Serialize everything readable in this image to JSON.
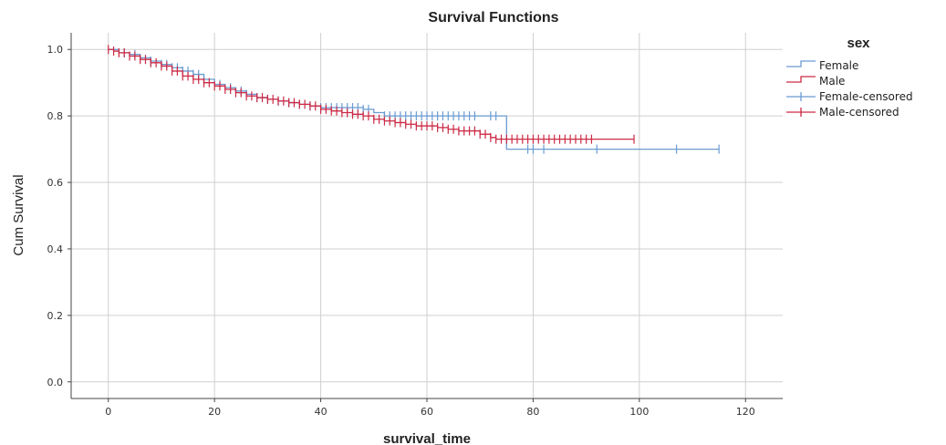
{
  "chart_data": {
    "type": "line",
    "step": true,
    "title": "Survival Functions",
    "xlabel": "survival_time",
    "ylabel": "Cum Survival",
    "xlim": [
      -7,
      127
    ],
    "ylim": [
      -0.05,
      1.05
    ],
    "x_ticks": [
      "0",
      "20",
      "40",
      "60",
      "80",
      "100",
      "120"
    ],
    "y_ticks": [
      "0.0",
      "0.2",
      "0.4",
      "0.6",
      "0.8",
      "1.0"
    ],
    "grid": true,
    "legend_position": "right",
    "legend_title": "sex",
    "legend_entries": [
      "Female",
      "Male",
      "Female-censored",
      "Male-censored"
    ],
    "series": [
      {
        "name": "Female",
        "color": "#6b9bd2",
        "step_points": [
          [
            0,
            1.0
          ],
          [
            2,
            0.99
          ],
          [
            4,
            0.985
          ],
          [
            6,
            0.975
          ],
          [
            8,
            0.965
          ],
          [
            10,
            0.955
          ],
          [
            12,
            0.945
          ],
          [
            14,
            0.935
          ],
          [
            16,
            0.925
          ],
          [
            18,
            0.91
          ],
          [
            20,
            0.895
          ],
          [
            22,
            0.885
          ],
          [
            24,
            0.875
          ],
          [
            26,
            0.865
          ],
          [
            28,
            0.855
          ],
          [
            30,
            0.85
          ],
          [
            32,
            0.845
          ],
          [
            34,
            0.84
          ],
          [
            36,
            0.835
          ],
          [
            38,
            0.83
          ],
          [
            40,
            0.825
          ],
          [
            48,
            0.82
          ],
          [
            50,
            0.81
          ],
          [
            52,
            0.8
          ],
          [
            75,
            0.8
          ],
          [
            75,
            0.7
          ],
          [
            115,
            0.7
          ]
        ],
        "censored": [
          3,
          5,
          8,
          10,
          11,
          12,
          13,
          14,
          15,
          16,
          17,
          18,
          21,
          23,
          25,
          26,
          28,
          30,
          32,
          34,
          36,
          38,
          40,
          41,
          42,
          43,
          44,
          45,
          46,
          47,
          48,
          49,
          52,
          53,
          54,
          55,
          56,
          57,
          58,
          59,
          60,
          61,
          62,
          63,
          64,
          65,
          66,
          67,
          68,
          69,
          72,
          73,
          79,
          80,
          82,
          92,
          107,
          115
        ]
      },
      {
        "name": "Male",
        "color": "#cc2a45",
        "step_points": [
          [
            0,
            1.0
          ],
          [
            1,
            0.995
          ],
          [
            2,
            0.99
          ],
          [
            4,
            0.98
          ],
          [
            6,
            0.97
          ],
          [
            8,
            0.96
          ],
          [
            10,
            0.95
          ],
          [
            12,
            0.935
          ],
          [
            14,
            0.92
          ],
          [
            16,
            0.91
          ],
          [
            18,
            0.9
          ],
          [
            20,
            0.89
          ],
          [
            22,
            0.88
          ],
          [
            24,
            0.87
          ],
          [
            26,
            0.86
          ],
          [
            28,
            0.855
          ],
          [
            30,
            0.85
          ],
          [
            32,
            0.845
          ],
          [
            34,
            0.84
          ],
          [
            36,
            0.835
          ],
          [
            38,
            0.83
          ],
          [
            40,
            0.82
          ],
          [
            42,
            0.815
          ],
          [
            44,
            0.81
          ],
          [
            46,
            0.805
          ],
          [
            48,
            0.8
          ],
          [
            50,
            0.79
          ],
          [
            52,
            0.785
          ],
          [
            54,
            0.78
          ],
          [
            56,
            0.775
          ],
          [
            58,
            0.77
          ],
          [
            62,
            0.765
          ],
          [
            64,
            0.76
          ],
          [
            66,
            0.755
          ],
          [
            70,
            0.745
          ],
          [
            72,
            0.735
          ],
          [
            73,
            0.73
          ],
          [
            99,
            0.73
          ]
        ],
        "censored": [
          0,
          1,
          2,
          3,
          4,
          5,
          6,
          7,
          8,
          9,
          10,
          11,
          12,
          13,
          14,
          15,
          16,
          17,
          18,
          19,
          20,
          21,
          22,
          23,
          24,
          25,
          26,
          27,
          28,
          29,
          30,
          31,
          32,
          33,
          34,
          35,
          36,
          37,
          38,
          39,
          40,
          41,
          42,
          43,
          44,
          45,
          46,
          47,
          48,
          49,
          50,
          51,
          52,
          53,
          54,
          55,
          56,
          57,
          58,
          59,
          60,
          61,
          62,
          63,
          64,
          65,
          66,
          67,
          68,
          69,
          70,
          71,
          72,
          73,
          74,
          75,
          76,
          77,
          78,
          79,
          80,
          81,
          82,
          83,
          84,
          85,
          86,
          87,
          88,
          89,
          90,
          91,
          99
        ]
      }
    ]
  }
}
